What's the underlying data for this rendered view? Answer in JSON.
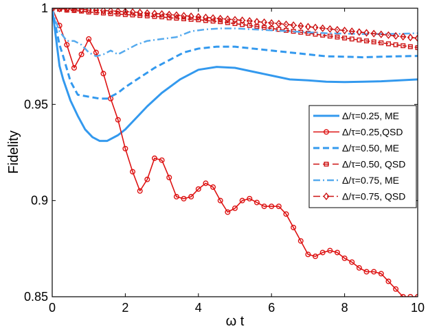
{
  "chart_data": {
    "type": "line",
    "title": "",
    "xlabel": "ω t",
    "ylabel": "Fidelity",
    "xlim": [
      0,
      10
    ],
    "ylim": [
      0.85,
      1.0
    ],
    "xticks": [
      0,
      2,
      4,
      6,
      8,
      10
    ],
    "yticks": [
      0.85,
      0.9,
      0.95,
      1.0
    ],
    "xtick_labels": [
      "0",
      "2",
      "4",
      "6",
      "8",
      "10"
    ],
    "ytick_labels": [
      "0.85",
      "0.9",
      "0.95",
      "1"
    ],
    "grid": false,
    "legend_position": "right",
    "series": [
      {
        "name": "Δ/τ=0.25, ME",
        "color": "#3399ee",
        "style": "solid",
        "marker": "none",
        "x": [
          0,
          0.1,
          0.2,
          0.3,
          0.5,
          0.7,
          0.9,
          1.1,
          1.3,
          1.5,
          1.8,
          2.0,
          2.3,
          2.6,
          3.0,
          3.5,
          4.0,
          4.5,
          5.0,
          5.5,
          6.0,
          6.5,
          7.0,
          7.5,
          8.0,
          8.5,
          9.0,
          9.5,
          10.0
        ],
        "y": [
          1.0,
          0.985,
          0.97,
          0.963,
          0.952,
          0.944,
          0.937,
          0.933,
          0.931,
          0.931,
          0.934,
          0.937,
          0.943,
          0.949,
          0.956,
          0.963,
          0.968,
          0.9695,
          0.969,
          0.967,
          0.965,
          0.963,
          0.9625,
          0.9618,
          0.9616,
          0.9618,
          0.962,
          0.9625,
          0.963
        ]
      },
      {
        "name": "Δ/τ=0.25,QSD",
        "color": "#dd1111",
        "style": "solid",
        "marker": "circle",
        "x": [
          0,
          0.2,
          0.4,
          0.6,
          0.8,
          1.0,
          1.2,
          1.4,
          1.6,
          1.8,
          2.0,
          2.2,
          2.4,
          2.6,
          2.8,
          3.0,
          3.2,
          3.4,
          3.6,
          3.8,
          4.0,
          4.2,
          4.4,
          4.6,
          4.8,
          5.0,
          5.2,
          5.4,
          5.6,
          5.8,
          6.0,
          6.2,
          6.4,
          6.6,
          6.8,
          7.0,
          7.2,
          7.4,
          7.6,
          7.8,
          8.0,
          8.2,
          8.4,
          8.6,
          8.8,
          9.0,
          9.2,
          9.4,
          9.6,
          9.8,
          10.0
        ],
        "y": [
          1.0,
          0.991,
          0.981,
          0.969,
          0.976,
          0.984,
          0.977,
          0.966,
          0.953,
          0.942,
          0.927,
          0.915,
          0.905,
          0.911,
          0.922,
          0.921,
          0.912,
          0.902,
          0.901,
          0.902,
          0.906,
          0.909,
          0.907,
          0.9,
          0.894,
          0.896,
          0.9,
          0.901,
          0.899,
          0.897,
          0.897,
          0.897,
          0.893,
          0.886,
          0.879,
          0.872,
          0.871,
          0.873,
          0.874,
          0.873,
          0.87,
          0.868,
          0.865,
          0.863,
          0.863,
          0.862,
          0.858,
          0.854,
          0.85,
          0.85,
          0.85
        ]
      },
      {
        "name": "Δ/τ=0.50, ME",
        "color": "#3399ee",
        "style": "dashed",
        "marker": "none",
        "x": [
          0,
          0.1,
          0.2,
          0.3,
          0.5,
          0.7,
          1.0,
          1.3,
          1.5,
          1.8,
          2.0,
          2.4,
          2.8,
          3.2,
          3.6,
          4.0,
          4.5,
          5.0,
          5.5,
          6.0,
          6.5,
          7.0,
          7.5,
          8.0,
          8.5,
          9.0,
          9.5,
          10.0
        ],
        "y": [
          1.0,
          0.99,
          0.981,
          0.975,
          0.962,
          0.955,
          0.954,
          0.953,
          0.953,
          0.956,
          0.959,
          0.964,
          0.969,
          0.973,
          0.977,
          0.979,
          0.98,
          0.98,
          0.979,
          0.978,
          0.977,
          0.976,
          0.975,
          0.9748,
          0.9745,
          0.9748,
          0.975,
          0.9752
        ]
      },
      {
        "name": "Δ/τ=0.50, QSD",
        "color": "#cc1111",
        "style": "dashed",
        "marker": "square",
        "x": [
          0,
          0.2,
          0.4,
          0.6,
          0.8,
          1.0,
          1.2,
          1.4,
          1.6,
          1.8,
          2.0,
          2.2,
          2.4,
          2.6,
          2.8,
          3.0,
          3.2,
          3.4,
          3.6,
          3.8,
          4.0,
          4.2,
          4.4,
          4.6,
          4.8,
          5.0,
          5.2,
          5.4,
          5.6,
          5.8,
          6.0,
          6.2,
          6.4,
          6.6,
          6.8,
          7.0,
          7.2,
          7.4,
          7.6,
          7.8,
          8.0,
          8.2,
          8.4,
          8.6,
          8.8,
          9.0,
          9.2,
          9.4,
          9.6,
          9.8,
          10.0
        ],
        "y": [
          1.0,
          0.9995,
          0.999,
          0.9988,
          0.9985,
          0.998,
          0.9978,
          0.9975,
          0.9972,
          0.997,
          0.9967,
          0.9965,
          0.9962,
          0.996,
          0.9957,
          0.9955,
          0.995,
          0.9948,
          0.9945,
          0.9942,
          0.994,
          0.9936,
          0.9933,
          0.993,
          0.9925,
          0.992,
          0.9915,
          0.991,
          0.9905,
          0.99,
          0.9895,
          0.989,
          0.9885,
          0.988,
          0.9875,
          0.987,
          0.9865,
          0.986,
          0.9855,
          0.985,
          0.9845,
          0.984,
          0.9835,
          0.983,
          0.9825,
          0.982,
          0.9815,
          0.981,
          0.9805,
          0.98,
          0.9795
        ]
      },
      {
        "name": "Δ/τ=0.75, ME",
        "color": "#55aaee",
        "style": "dashdot",
        "marker": "none",
        "x": [
          0,
          0.1,
          0.2,
          0.4,
          0.6,
          0.8,
          1.0,
          1.2,
          1.4,
          1.6,
          1.8,
          2.0,
          2.3,
          2.6,
          3.0,
          3.4,
          3.8,
          4.2,
          4.6,
          5.0,
          5.5,
          6.0,
          6.5,
          7.0,
          7.5,
          8.0,
          8.5,
          9.0,
          9.5,
          10.0
        ],
        "y": [
          1.0,
          0.993,
          0.988,
          0.983,
          0.983,
          0.981,
          0.977,
          0.975,
          0.976,
          0.978,
          0.976,
          0.978,
          0.981,
          0.983,
          0.984,
          0.985,
          0.988,
          0.989,
          0.9895,
          0.9895,
          0.989,
          0.9885,
          0.988,
          0.9875,
          0.987,
          0.9868,
          0.9866,
          0.9866,
          0.9867,
          0.987
        ]
      },
      {
        "name": "Δ/τ=0.75, QSD",
        "color": "#cc1111",
        "style": "dashdot",
        "marker": "diamond",
        "x": [
          0,
          0.2,
          0.4,
          0.6,
          0.8,
          1.0,
          1.2,
          1.4,
          1.6,
          1.8,
          2.0,
          2.2,
          2.4,
          2.6,
          2.8,
          3.0,
          3.2,
          3.4,
          3.6,
          3.8,
          4.0,
          4.2,
          4.4,
          4.6,
          4.8,
          5.0,
          5.2,
          5.4,
          5.6,
          5.8,
          6.0,
          6.2,
          6.4,
          6.6,
          6.8,
          7.0,
          7.2,
          7.4,
          7.6,
          7.8,
          8.0,
          8.2,
          8.4,
          8.6,
          8.8,
          9.0,
          9.2,
          9.4,
          9.6,
          9.8,
          10.0
        ],
        "y": [
          1.0,
          0.9998,
          0.9996,
          0.9994,
          0.9993,
          0.9992,
          0.999,
          0.9988,
          0.9986,
          0.9984,
          0.9982,
          0.998,
          0.9978,
          0.9975,
          0.9972,
          0.997,
          0.9967,
          0.9964,
          0.9961,
          0.9958,
          0.9955,
          0.9952,
          0.9949,
          0.9946,
          0.9943,
          0.994,
          0.9937,
          0.9934,
          0.993,
          0.9927,
          0.9923,
          0.992,
          0.9916,
          0.9912,
          0.9908,
          0.9904,
          0.99,
          0.9896,
          0.9892,
          0.9888,
          0.9884,
          0.988,
          0.9876,
          0.9872,
          0.9868,
          0.9864,
          0.986,
          0.9856,
          0.9852,
          0.9848,
          0.9844
        ]
      }
    ]
  }
}
